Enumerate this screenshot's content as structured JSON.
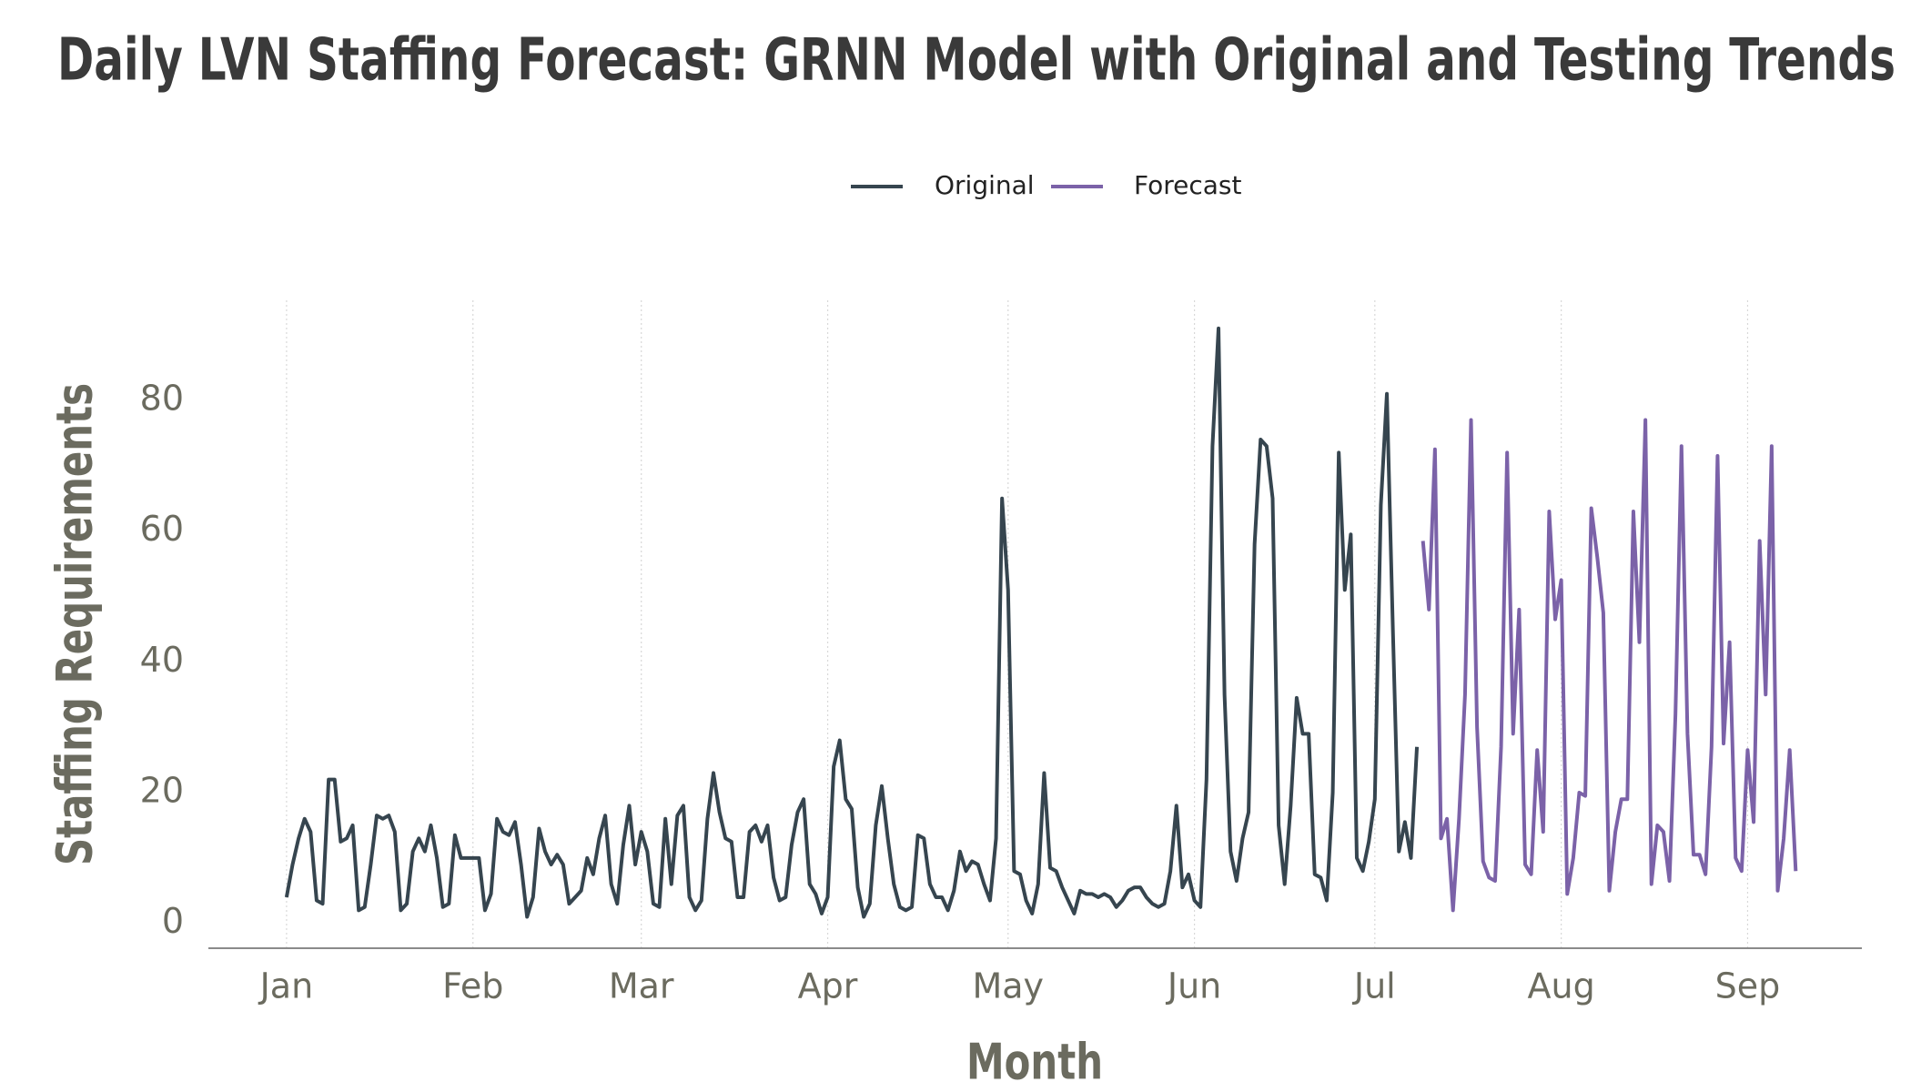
{
  "chart_data": {
    "type": "line",
    "title": "Daily LVN Staffing Forecast: GRNN Model with Original and Testing Trends",
    "x_label": "Month",
    "y_label": "Staffing Requirements",
    "xlim": [
      -12,
      263
    ],
    "ylim": [
      -3.8,
      95.3
    ],
    "xticks": [
      {
        "value": 1,
        "label": "Jan"
      },
      {
        "value": 32,
        "label": "Feb"
      },
      {
        "value": 60,
        "label": "Mar"
      },
      {
        "value": 91,
        "label": "Apr"
      },
      {
        "value": 121,
        "label": "May"
      },
      {
        "value": 152,
        "label": "Jun"
      },
      {
        "value": 182,
        "label": "Jul"
      },
      {
        "value": 213,
        "label": "Aug"
      },
      {
        "value": 244,
        "label": "Sep"
      }
    ],
    "yticks": [
      0,
      20,
      40,
      60,
      80
    ],
    "grid": "x",
    "legend": "top",
    "series": [
      {
        "name": "Original",
        "color": "#36454f",
        "x": [
          1,
          2,
          3,
          4,
          5,
          6,
          7,
          8,
          9,
          10,
          11,
          12,
          13,
          14,
          15,
          16,
          17,
          18,
          19,
          20,
          21,
          22,
          23,
          24,
          25,
          26,
          27,
          28,
          29,
          30,
          31,
          32,
          33,
          34,
          35,
          36,
          37,
          38,
          39,
          40,
          41,
          42,
          43,
          44,
          45,
          46,
          47,
          48,
          49,
          50,
          51,
          52,
          53,
          54,
          55,
          56,
          57,
          58,
          59,
          60,
          61,
          62,
          63,
          64,
          65,
          66,
          67,
          68,
          69,
          70,
          71,
          72,
          73,
          74,
          75,
          76,
          77,
          78,
          79,
          80,
          81,
          82,
          83,
          84,
          85,
          86,
          87,
          88,
          89,
          90,
          91,
          92,
          93,
          94,
          95,
          96,
          97,
          98,
          99,
          100,
          101,
          102,
          103,
          104,
          105,
          106,
          107,
          108,
          109,
          110,
          111,
          112,
          113,
          114,
          115,
          116,
          117,
          118,
          119,
          120,
          121,
          122,
          123,
          124,
          125,
          126,
          127,
          128,
          129,
          130,
          131,
          132,
          133,
          134,
          135,
          136,
          137,
          138,
          139,
          140,
          141,
          142,
          143,
          144,
          145,
          146,
          147,
          148,
          149,
          150,
          151,
          152,
          153,
          154,
          155,
          156,
          157,
          158,
          159,
          160,
          161,
          162,
          163,
          164,
          165,
          166,
          167,
          168,
          169,
          170,
          171,
          172,
          173,
          174,
          175,
          176,
          177,
          178,
          179,
          180,
          181,
          182,
          183,
          184,
          185,
          186,
          187,
          188,
          189
        ],
        "values": [
          4,
          9,
          13,
          16,
          14,
          3.5,
          3,
          22,
          22,
          12.5,
          13,
          15,
          2,
          2.5,
          9,
          16.5,
          16,
          16.5,
          14,
          2,
          3,
          11,
          13,
          11,
          15,
          10,
          2.5,
          3,
          13.5,
          10,
          10,
          10,
          10,
          2,
          4.5,
          16,
          14,
          13.5,
          15.5,
          9,
          1,
          4,
          14.5,
          11,
          9,
          10.5,
          9,
          3,
          4,
          5,
          10,
          7.5,
          13,
          16.5,
          6,
          3,
          12,
          18,
          9,
          14,
          11,
          3,
          2.5,
          16,
          6,
          16.5,
          18,
          4,
          2,
          3.5,
          16,
          23,
          17,
          13,
          12.5,
          4,
          4,
          14,
          15,
          12.5,
          15,
          7,
          3.5,
          4,
          12,
          17,
          19,
          6,
          4.5,
          1.5,
          4,
          24,
          28,
          19,
          17.5,
          5.5,
          1,
          3,
          15,
          21,
          13,
          6,
          2.5,
          2,
          2.5,
          13.5,
          13,
          6,
          4,
          4,
          2,
          5,
          11,
          8,
          9.5,
          9,
          6,
          3.5,
          13,
          65,
          51,
          8,
          7.5,
          3.5,
          1.5,
          6,
          23,
          8.5,
          8,
          5.5,
          3.5,
          1.5,
          5,
          4.5,
          4.5,
          4,
          4.5,
          4,
          2.5,
          3.5,
          5,
          5.5,
          5.5,
          4,
          3,
          2.5,
          3,
          8,
          18,
          5.5,
          7.5,
          3.5,
          2.5,
          22,
          73,
          91,
          35,
          11,
          6.5,
          13,
          17,
          58,
          74,
          73,
          65,
          15,
          6,
          18,
          34.5,
          29,
          29,
          7.5,
          7,
          3.5,
          20,
          72,
          51,
          59.5,
          10,
          8,
          12.5,
          19,
          64,
          81,
          45,
          11,
          15.5,
          10,
          27
        ]
      },
      {
        "name": "Forecast",
        "color": "#7b62a8",
        "x": [
          190,
          191,
          192,
          193,
          194,
          195,
          196,
          197,
          198,
          199,
          200,
          201,
          202,
          203,
          204,
          205,
          206,
          207,
          208,
          209,
          210,
          211,
          212,
          213,
          214,
          215,
          216,
          217,
          218,
          219,
          220,
          221,
          222,
          223,
          224,
          225,
          226,
          227,
          228,
          229,
          230,
          231,
          232,
          233,
          234,
          235,
          236,
          237,
          238,
          239,
          240,
          241,
          242,
          243,
          244,
          245,
          246,
          247,
          248,
          249,
          250,
          251,
          252
        ],
        "values": [
          58.5,
          48,
          72.5,
          13,
          16,
          2,
          16,
          35,
          77,
          30,
          9.5,
          7,
          6.5,
          27,
          72,
          29,
          48,
          9,
          7.5,
          26.5,
          14,
          63,
          46.5,
          52.5,
          4.5,
          10,
          20,
          19.5,
          63.5,
          56,
          47.5,
          5,
          14,
          19,
          19,
          63,
          43,
          77,
          6,
          15,
          14,
          6.5,
          32,
          73,
          29,
          10.5,
          10.5,
          7.5,
          27,
          71.5,
          27.5,
          43,
          10,
          8,
          26.5,
          15.5,
          58.5,
          35,
          73,
          5,
          13,
          26.5,
          8
        ]
      }
    ]
  }
}
